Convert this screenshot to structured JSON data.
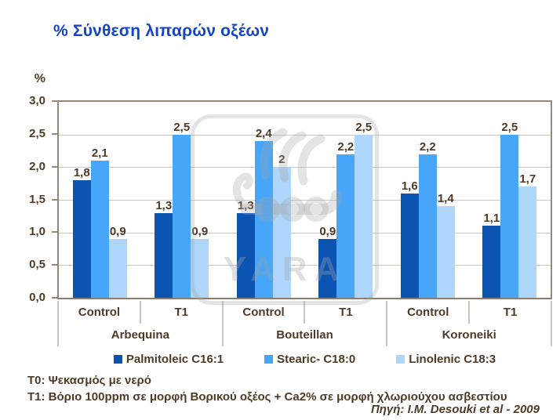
{
  "slide": {
    "title": "% Σύνθεση λιπαρών οξέων",
    "footnote_t0": "T0: Ψεκασμός με νερό",
    "footnote_t1": "T1: Βόριο 100ppm σε μορφή Βορικού οξέος + Ca2% σε μορφή χλωριούχου ασβεστίου",
    "source": "Πηγή: I.M. Desouki et al - 2009",
    "watermark_text": "YARA"
  },
  "chart_data": {
    "type": "bar",
    "title": "% Σύνθεση λιπαρών οξέων",
    "ylabel": "%",
    "xlabel": "",
    "ylim": [
      0,
      3.0
    ],
    "ytick_step": 0.5,
    "yticks_labels": [
      "3,0",
      "2,5",
      "2,0",
      "1,5",
      "1,0",
      "0,5",
      "0,0"
    ],
    "grid": true,
    "legend_position": "bottom",
    "group_labels": [
      "Arbequina",
      "Bouteillan",
      "Koroneiki"
    ],
    "categories": [
      "Control",
      "T1",
      "Control",
      "T1",
      "Control",
      "T1"
    ],
    "series": [
      {
        "name": "Palmitoleic C16:1",
        "color": "#0b54b2",
        "values": [
          1.8,
          1.3,
          1.3,
          0.9,
          1.6,
          1.1
        ]
      },
      {
        "name": "Stearic- C18:0",
        "color": "#47a6f8",
        "values": [
          2.1,
          2.5,
          2.4,
          2.2,
          2.2,
          2.5
        ]
      },
      {
        "name": "Linolenic C18:3",
        "color": "#aed6fa",
        "values": [
          0.9,
          0.9,
          2.0,
          2.5,
          1.4,
          1.7
        ]
      }
    ],
    "value_labels": [
      [
        "1,8",
        "2,1",
        "0,9"
      ],
      [
        "1,3",
        "2,5",
        "0,9"
      ],
      [
        "1,3",
        "2,4",
        "2"
      ],
      [
        "0,9",
        "2,2",
        "2,5"
      ],
      [
        "1,6",
        "2,2",
        "1,4"
      ],
      [
        "1,1",
        "2,5",
        "1,7"
      ]
    ],
    "colors": {
      "title_text": "#1445c7",
      "axis_text": "#4e3b27",
      "plot_border": "#94887a",
      "gridline": "#cbc7c1"
    }
  }
}
